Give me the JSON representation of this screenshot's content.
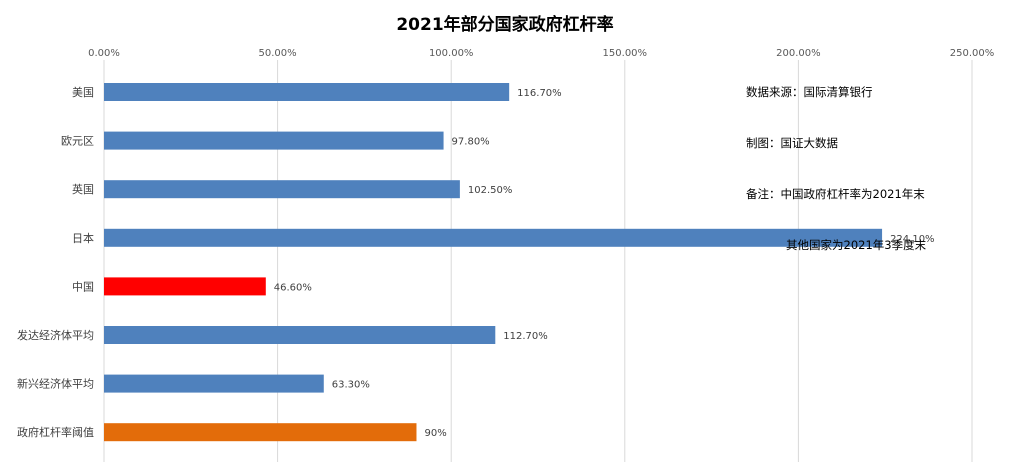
{
  "chart_data": {
    "type": "bar",
    "orientation": "horizontal",
    "title": "2021年部分国家政府杠杆率",
    "categories": [
      "美国",
      "欧元区",
      "英国",
      "日本",
      "中国",
      "发达经济体平均",
      "新兴经济体平均",
      "政府杠杆率阈值"
    ],
    "values": [
      116.7,
      97.8,
      102.5,
      224.1,
      46.6,
      112.7,
      63.3,
      90
    ],
    "value_labels": [
      "116.70%",
      "97.80%",
      "102.50%",
      "224.10%",
      "46.60%",
      "112.70%",
      "63.30%",
      "90%"
    ],
    "bar_colors": [
      "#4f81bd",
      "#4f81bd",
      "#4f81bd",
      "#4f81bd",
      "#ff0000",
      "#4f81bd",
      "#4f81bd",
      "#e36c0a"
    ],
    "xlim": [
      0,
      250
    ],
    "x_ticks": [
      0,
      50,
      100,
      150,
      200,
      250
    ],
    "x_tick_labels": [
      "0.00%",
      "50.00%",
      "100.00%",
      "150.00%",
      "200.00%",
      "250.00%"
    ],
    "axis_position": "top",
    "grid": true,
    "legend": "none"
  },
  "notes": {
    "source": "数据来源：国际清算银行",
    "maker": "制图：国证大数据",
    "remark_1": "备注：中国政府杠杆率为2021年末",
    "remark_2": "其他国家为2021年3季度末"
  }
}
